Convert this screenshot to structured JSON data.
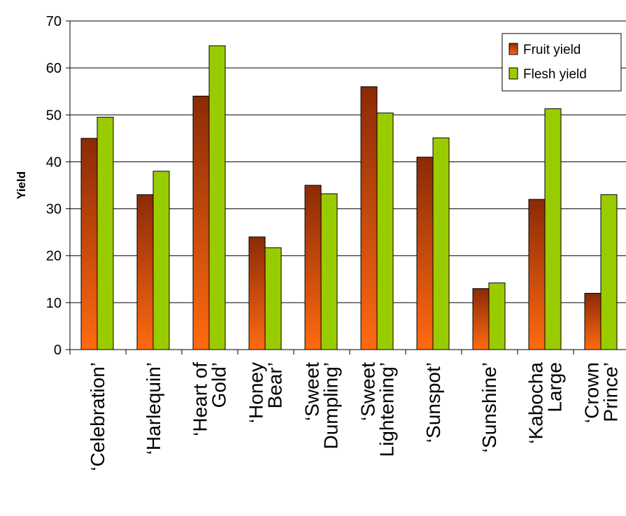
{
  "chart_data": {
    "type": "bar",
    "ylabel": "Yield",
    "xlabel": "",
    "ylim": [
      0,
      70
    ],
    "yticks": [
      "0",
      "10",
      "20",
      "30",
      "40",
      "50",
      "60",
      "70"
    ],
    "grid": true,
    "legend_position": "top-right",
    "categories": [
      [
        "‘Celebration’"
      ],
      [
        "‘Harlequin’"
      ],
      [
        "‘Heart of",
        "Gold’"
      ],
      [
        "‘Honey",
        "Bear’"
      ],
      [
        "‘Sweet",
        "Dumpling’"
      ],
      [
        "‘Sweet",
        "Lightening’"
      ],
      [
        "‘Sunspot’"
      ],
      [
        "‘Sunshine’"
      ],
      [
        "‘Kabocha",
        "Large"
      ],
      [
        "‘Crown",
        "Prince’"
      ]
    ],
    "series": [
      {
        "name": "Fruit yield",
        "color": "#c0400c",
        "values": [
          45,
          33,
          54,
          24,
          35,
          56,
          41,
          13,
          32,
          12
        ]
      },
      {
        "name": "Flesh yield",
        "color": "#99cc00",
        "values": [
          49.5,
          38,
          64.7,
          21.7,
          33.2,
          50.4,
          45.1,
          14.2,
          51.3,
          33
        ]
      }
    ]
  }
}
